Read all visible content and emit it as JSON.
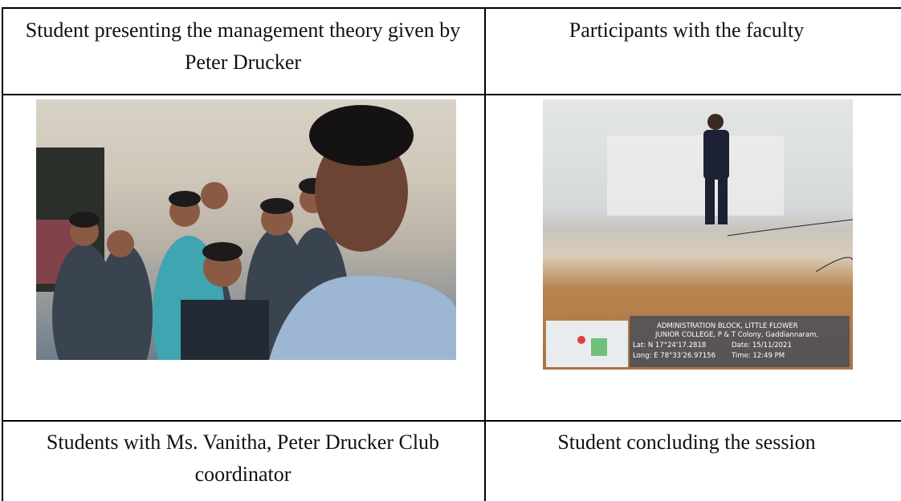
{
  "table": {
    "rows": [
      [
        "Student presenting the management theory given by Peter Drucker",
        "Participants with the faculty"
      ],
      [
        "Students with Ms. Vanitha, Peter Drucker Club coordinator",
        "Student concluding the session"
      ]
    ]
  },
  "photo_overlay": {
    "line1": "ADMINISTRATION BLOCK, LITTLE FLOWER",
    "line2": "JUNIOR COLLEGE, P & T Colony, Gaddiannaram,",
    "lat": "Lat: N 17°24'17.2818",
    "date": "Date: 15/11/2021",
    "long": "Long: E 78°33'26.97156",
    "time": "Time: 12:49 PM"
  }
}
